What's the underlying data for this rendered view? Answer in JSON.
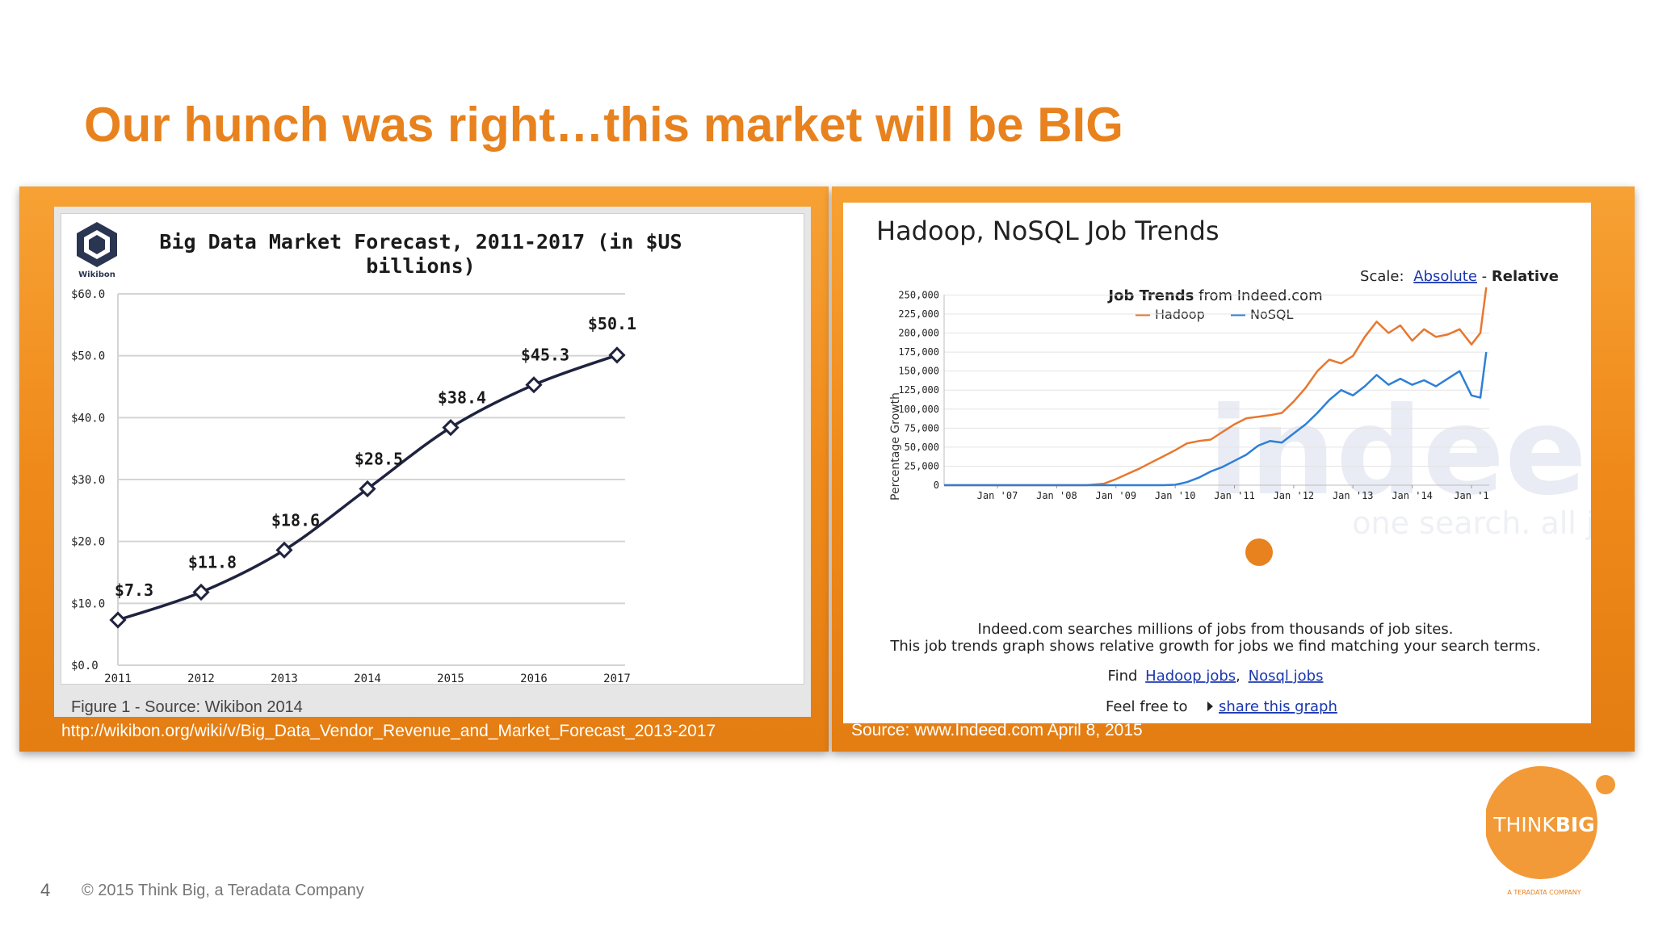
{
  "slide": {
    "title": "Our hunch was right…this market will be BIG",
    "page_number": "4",
    "copyright": "© 2015 Think Big, a Teradata Company",
    "brand_color": "#E8821E"
  },
  "logo": {
    "text_think": "THINK",
    "text_big": "BIG",
    "tagline": "A TERADATA COMPANY"
  },
  "left_panel": {
    "source_url": "http://wikibon.org/wiki/v/Big_Data_Vendor_Revenue_and_Market_Forecast_2013-2017",
    "figure_caption": "Figure 1 - Source: Wikibon 2014",
    "logo_label": "Wikibon"
  },
  "right_panel": {
    "source": "Source: www.Indeed.com April 8, 2015",
    "scale_label": "Scale:",
    "scale_absolute": "Absolute",
    "scale_sep": " - ",
    "scale_relative": "Relative",
    "subtitle_bold": "Job Trends",
    "subtitle_rest": " from Indeed.com",
    "watermark_big": "indeed",
    "watermark_small": "one search. all jobs.",
    "info_line1": "Indeed.com searches millions of jobs from thousands of job sites.",
    "info_line2": "This job trends graph shows relative growth for jobs we find matching your search terms.",
    "find_label": "Find",
    "hadoop_jobs": "Hadoop jobs",
    "comma": ",",
    "nosql_jobs": "Nosql jobs",
    "feel_free": "Feel free to",
    "share": "share this graph"
  },
  "chart_data": [
    {
      "type": "line",
      "title": "Big Data Market Forecast, 2011-2017 (in $US billions)",
      "x": [
        "2011",
        "2012",
        "2013",
        "2014",
        "2015",
        "2016",
        "2017"
      ],
      "values": [
        7.3,
        11.8,
        18.6,
        28.5,
        38.4,
        45.3,
        50.1
      ],
      "data_labels": [
        "$7.3",
        "$11.8",
        "$18.6",
        "$28.5",
        "$38.4",
        "$45.3",
        "$50.1"
      ],
      "y_ticks": [
        "$0.0",
        "$10.0",
        "$20.0",
        "$30.0",
        "$40.0",
        "$50.0",
        "$60.0"
      ],
      "ylim": [
        0,
        60
      ],
      "grid": true,
      "line_color": "#1f2340"
    },
    {
      "type": "line",
      "title": "Hadoop, NoSQL Job Trends",
      "ylabel": "Percentage Growth",
      "x_ticks": [
        "Jan '07",
        "Jan '08",
        "Jan '09",
        "Jan '10",
        "Jan '11",
        "Jan '12",
        "Jan '13",
        "Jan '14",
        "Jan '1"
      ],
      "y_ticks": [
        "0",
        "25,000",
        "50,000",
        "75,000",
        "100,000",
        "125,000",
        "150,000",
        "175,000",
        "200,000",
        "225,000",
        "250,000"
      ],
      "ylim": [
        0,
        260000
      ],
      "legend": "top",
      "grid": true,
      "series": [
        {
          "name": "Hadoop",
          "color": "#E8772E",
          "x": [
            2006.1,
            2008.5,
            2008.8,
            2009.0,
            2009.2,
            2009.4,
            2009.6,
            2009.8,
            2010.0,
            2010.2,
            2010.4,
            2010.6,
            2010.8,
            2011.0,
            2011.2,
            2011.4,
            2011.6,
            2011.8,
            2012.0,
            2012.2,
            2012.4,
            2012.6,
            2012.8,
            2013.0,
            2013.2,
            2013.4,
            2013.6,
            2013.8,
            2014.0,
            2014.2,
            2014.4,
            2014.6,
            2014.8,
            2015.0,
            2015.15,
            2015.25
          ],
          "y": [
            0,
            0,
            2000,
            8000,
            15000,
            22000,
            30000,
            38000,
            46000,
            55000,
            58000,
            60000,
            70000,
            80000,
            88000,
            90000,
            92000,
            95000,
            110000,
            128000,
            150000,
            165000,
            160000,
            170000,
            195000,
            215000,
            200000,
            210000,
            190000,
            205000,
            195000,
            198000,
            205000,
            185000,
            200000,
            265000
          ]
        },
        {
          "name": "NoSQL",
          "color": "#2E7FD8",
          "x": [
            2006.1,
            2009.8,
            2010.0,
            2010.2,
            2010.4,
            2010.6,
            2010.8,
            2011.0,
            2011.2,
            2011.4,
            2011.6,
            2011.8,
            2012.0,
            2012.2,
            2012.4,
            2012.6,
            2012.8,
            2013.0,
            2013.2,
            2013.4,
            2013.6,
            2013.8,
            2014.0,
            2014.2,
            2014.4,
            2014.6,
            2014.8,
            2015.0,
            2015.15,
            2015.25
          ],
          "y": [
            0,
            0,
            500,
            4000,
            10000,
            18000,
            24000,
            32000,
            40000,
            52000,
            58000,
            56000,
            68000,
            80000,
            95000,
            112000,
            125000,
            118000,
            130000,
            145000,
            132000,
            140000,
            132000,
            138000,
            130000,
            140000,
            150000,
            118000,
            115000,
            175000
          ]
        }
      ]
    }
  ]
}
